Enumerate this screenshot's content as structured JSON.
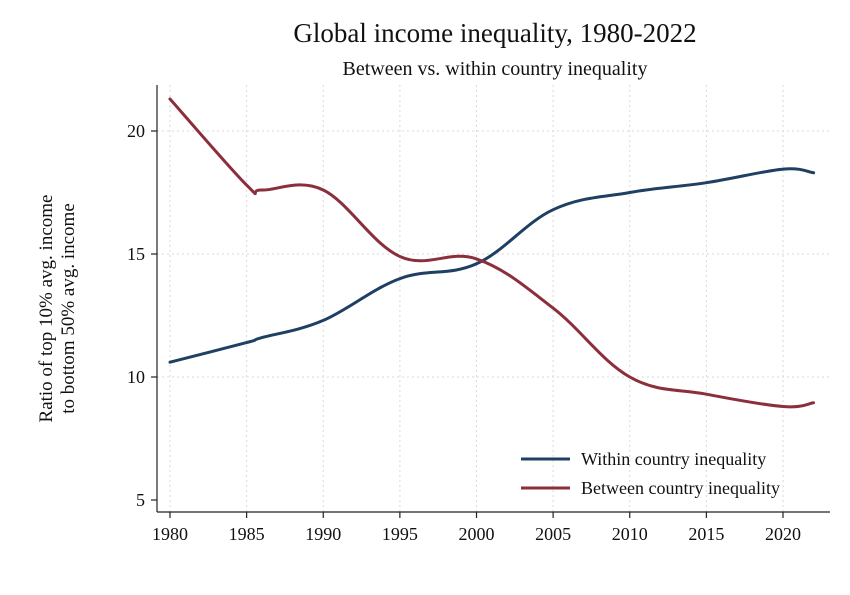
{
  "chart_data": {
    "type": "line",
    "title": "Global income inequality, 1980-2022",
    "subtitle": "Between vs. within country inequality",
    "ylabel_lines": [
      "Ratio of top 10% avg. income",
      "to bottom 50% avg. income"
    ],
    "xlabel": "",
    "xlim": [
      1980,
      2022
    ],
    "ylim": [
      5,
      22
    ],
    "x_ticks": [
      1980,
      1985,
      1990,
      1995,
      2000,
      2005,
      2010,
      2015,
      2020
    ],
    "y_ticks": [
      5,
      10,
      15,
      20
    ],
    "grid": true,
    "legend_position": "bottom-right",
    "x": [
      1980,
      1985,
      1986,
      1990,
      1995,
      2000,
      2005,
      2010,
      2015,
      2020,
      2022
    ],
    "series": [
      {
        "name": "Within country inequality",
        "color": "#1f3f63",
        "values": [
          10.6,
          11.4,
          11.6,
          12.3,
          14.0,
          14.6,
          16.8,
          17.5,
          17.9,
          18.45,
          18.3
        ]
      },
      {
        "name": "Between country inequality",
        "color": "#8b2f3c",
        "values": [
          21.3,
          17.8,
          17.6,
          17.6,
          14.9,
          14.8,
          12.8,
          10.0,
          9.3,
          8.8,
          8.95
        ]
      }
    ]
  }
}
